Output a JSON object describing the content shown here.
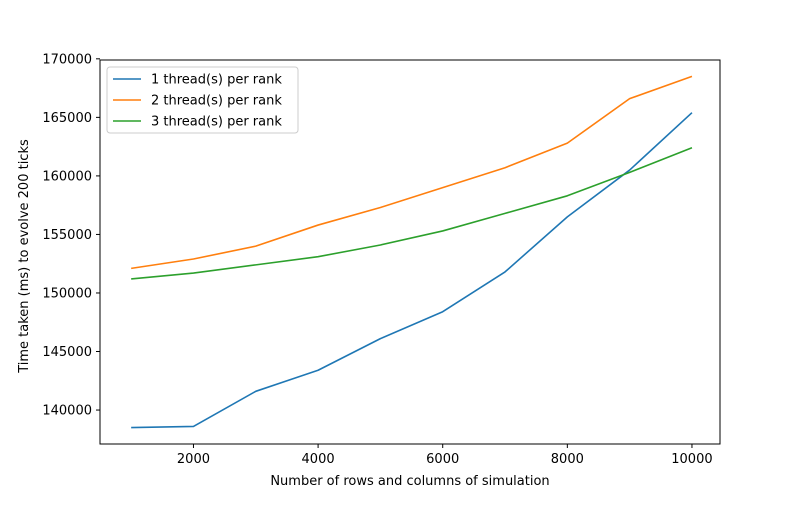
{
  "chart_data": {
    "type": "line",
    "title": "",
    "xlabel": "Number of rows and columns of simulation",
    "ylabel": "Time taken (ms) to evolve 200 ticks",
    "xlim": [
      500,
      10450
    ],
    "ylim": [
      137100,
      169900
    ],
    "x_ticks": [
      2000,
      4000,
      6000,
      8000,
      10000
    ],
    "y_ticks": [
      140000,
      145000,
      150000,
      155000,
      160000,
      165000,
      170000
    ],
    "grid": false,
    "legend_position": "upper left",
    "x": [
      1000,
      2000,
      3000,
      4000,
      5000,
      6000,
      7000,
      8000,
      9000,
      10000
    ],
    "series": [
      {
        "name": "1 thread(s) per rank",
        "color": "#1f77b4",
        "values": [
          138500,
          138600,
          141600,
          143400,
          146100,
          148400,
          151800,
          156500,
          160500,
          165400
        ]
      },
      {
        "name": "2 thread(s) per rank",
        "color": "#ff7f0e",
        "values": [
          152100,
          152900,
          154000,
          155800,
          157300,
          159000,
          160700,
          162800,
          166600,
          168500
        ]
      },
      {
        "name": "3 thread(s) per rank",
        "color": "#2ca02c",
        "values": [
          151200,
          151700,
          152400,
          153100,
          154100,
          155300,
          156800,
          158300,
          160300,
          162400
        ]
      }
    ]
  }
}
